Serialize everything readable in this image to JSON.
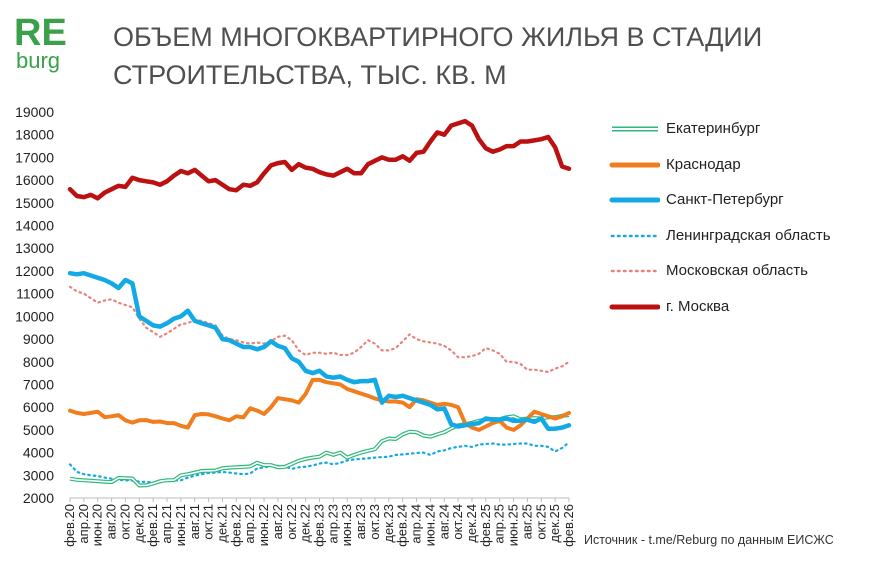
{
  "logo": {
    "top": "RE",
    "bottom": "burg"
  },
  "title_lines": [
    "ОБЪЕМ МНОГОКВАРТИРНОГО ЖИЛЬЯ В СТАДИИ",
    "СТРОИТЕЛЬСТВА, ТЫС. КВ. М"
  ],
  "source": "Источник - t.me/Reburg по данным ЕИСЖС",
  "chart_data": {
    "type": "line",
    "title": "ОБЪЕМ МНОГОКВАРТИРНОГО ЖИЛЬЯ В СТАДИИ СТРОИТЕЛЬСТВА, ТЫС. КВ. М",
    "ylim": [
      2000,
      19000
    ],
    "yticks": [
      19000,
      18000,
      17000,
      16000,
      15000,
      14000,
      13000,
      12000,
      11000,
      10000,
      9000,
      8000,
      7000,
      6000,
      5000,
      4000,
      3000,
      2000
    ],
    "grid": false,
    "legend_position": "right",
    "x_tick_labels": [
      "фев.20",
      "апр.20",
      "июн.20",
      "авг.20",
      "окт.20",
      "дек.20",
      "фев.21",
      "апр.21",
      "июн.21",
      "авг.21",
      "окт.21",
      "дек.21",
      "фев.22",
      "апр.22",
      "июн.22",
      "авг.22",
      "окт.22",
      "дек.22",
      "фев.23",
      "апр.23",
      "июн.23",
      "авг.23",
      "окт.23",
      "дек.23",
      "фев.24",
      "апр.24",
      "июн.24",
      "авг.24",
      "окт.24",
      "дек.24",
      "фев.25",
      "апр.25",
      "июн.25",
      "авг.25",
      "окт.25",
      "дек.25",
      "фев.26"
    ],
    "series": [
      {
        "name": "Екатеринбург",
        "color": "#2db87c",
        "style": "double",
        "values": [
          2850,
          2800,
          2780,
          2760,
          2740,
          2720,
          2700,
          2880,
          2870,
          2860,
          2550,
          2560,
          2640,
          2740,
          2780,
          2790,
          3000,
          3050,
          3120,
          3190,
          3200,
          3210,
          3310,
          3340,
          3350,
          3370,
          3390,
          3550,
          3450,
          3450,
          3350,
          3370,
          3500,
          3640,
          3720,
          3780,
          3820,
          4000,
          3900,
          4000,
          3780,
          3900,
          4000,
          4080,
          4150,
          4500,
          4620,
          4600,
          4800,
          4920,
          4900,
          4750,
          4700,
          4800,
          4900,
          5060,
          5200,
          5250,
          5310,
          5400,
          5460,
          5480,
          5470,
          5560,
          5600,
          5460,
          5500,
          5520,
          5500,
          5560,
          5560,
          5620,
          5650
        ]
      },
      {
        "name": "Краснодар",
        "color": "#f07d1e",
        "style": "solid",
        "values": [
          5850,
          5750,
          5700,
          5750,
          5800,
          5560,
          5600,
          5650,
          5420,
          5320,
          5420,
          5430,
          5350,
          5370,
          5300,
          5300,
          5180,
          5100,
          5650,
          5700,
          5680,
          5600,
          5500,
          5420,
          5600,
          5550,
          5950,
          5850,
          5700,
          6000,
          6400,
          6350,
          6300,
          6200,
          6580,
          7200,
          7200,
          7100,
          7050,
          7000,
          6800,
          6700,
          6600,
          6500,
          6380,
          6300,
          6250,
          6250,
          6200,
          6000,
          6350,
          6300,
          6200,
          6100,
          6150,
          6100,
          6000,
          5300,
          5100,
          5000,
          5150,
          5300,
          5400,
          5100,
          5000,
          5200,
          5500,
          5800,
          5700,
          5600,
          5500,
          5600,
          5750
        ]
      },
      {
        "name": "Санкт-Петербург",
        "color": "#12a9e5",
        "style": "thick",
        "values": [
          11900,
          11850,
          11900,
          11800,
          11700,
          11600,
          11450,
          11250,
          11600,
          11450,
          10000,
          9800,
          9600,
          9550,
          9700,
          9900,
          10000,
          10250,
          9800,
          9700,
          9600,
          9500,
          9000,
          8950,
          8800,
          8650,
          8650,
          8550,
          8650,
          8900,
          8700,
          8600,
          8150,
          8000,
          7600,
          7500,
          7600,
          7350,
          7300,
          7350,
          7200,
          7100,
          7150,
          7150,
          7200,
          6200,
          6500,
          6450,
          6500,
          6400,
          6300,
          6200,
          6100,
          5900,
          5950,
          5250,
          5150,
          5200,
          5250,
          5300,
          5500,
          5450,
          5450,
          5500,
          5400,
          5400,
          5450,
          5350,
          5500,
          5050,
          5050,
          5100,
          5200
        ]
      },
      {
        "name": "Ленинградская область",
        "color": "#12a9e5",
        "style": "dotted",
        "values": [
          3480,
          3150,
          3050,
          3000,
          2970,
          2900,
          2850,
          2800,
          2780,
          2770,
          2720,
          2710,
          2680,
          2690,
          2760,
          2770,
          2780,
          2900,
          2980,
          3050,
          3100,
          3120,
          3150,
          3120,
          3080,
          3050,
          3080,
          3300,
          3350,
          3400,
          3420,
          3400,
          3280,
          3350,
          3380,
          3430,
          3520,
          3560,
          3480,
          3550,
          3650,
          3700,
          3720,
          3750,
          3780,
          3800,
          3820,
          3900,
          3920,
          3950,
          3980,
          4000,
          3900,
          4050,
          4100,
          4200,
          4250,
          4300,
          4250,
          4350,
          4380,
          4400,
          4350,
          4350,
          4380,
          4400,
          4400,
          4300,
          4300,
          4250,
          4050,
          4200,
          4450
        ]
      },
      {
        "name": "Московская область",
        "color": "#e8827c",
        "style": "dotted",
        "values": [
          11300,
          11100,
          11000,
          10800,
          10600,
          10700,
          10750,
          10600,
          10500,
          10400,
          9900,
          9500,
          9300,
          9100,
          9250,
          9450,
          9650,
          9700,
          9850,
          9800,
          9700,
          9600,
          9150,
          9000,
          8950,
          8850,
          8800,
          8850,
          8800,
          8900,
          9100,
          9150,
          8950,
          8500,
          8300,
          8400,
          8400,
          8350,
          8400,
          8300,
          8300,
          8400,
          8650,
          8950,
          8800,
          8500,
          8500,
          8600,
          8900,
          9200,
          9000,
          8900,
          8850,
          8800,
          8700,
          8500,
          8200,
          8200,
          8250,
          8350,
          8600,
          8500,
          8350,
          8000,
          8000,
          7900,
          7650,
          7650,
          7600,
          7550,
          7700,
          7800,
          8000
        ]
      },
      {
        "name": "г. Москва",
        "color": "#bb1111",
        "style": "thick",
        "values": [
          15600,
          15300,
          15250,
          15350,
          15200,
          15450,
          15600,
          15750,
          15700,
          16100,
          16000,
          15950,
          15900,
          15800,
          15950,
          16200,
          16400,
          16300,
          16450,
          16200,
          15950,
          16000,
          15800,
          15600,
          15550,
          15800,
          15750,
          15900,
          16300,
          16650,
          16750,
          16800,
          16450,
          16700,
          16550,
          16500,
          16350,
          16250,
          16200,
          16350,
          16500,
          16300,
          16300,
          16700,
          16850,
          17000,
          16900,
          16900,
          17050,
          16850,
          17200,
          17250,
          17700,
          18100,
          18000,
          18400,
          18500,
          18600,
          18400,
          17800,
          17400,
          17250,
          17350,
          17500,
          17500,
          17700,
          17700,
          17750,
          17800,
          17900,
          17450,
          16600,
          16500
        ]
      }
    ]
  }
}
